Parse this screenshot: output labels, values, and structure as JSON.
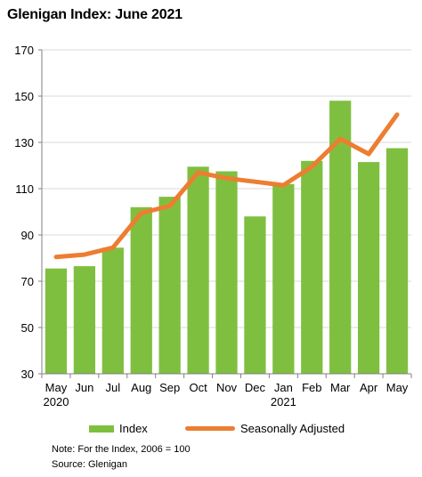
{
  "header": {
    "title": "Glenigan Index: June 2021"
  },
  "colors": {
    "bar": "#7fbf3f",
    "line": "#ed7d31",
    "axis": "#808080",
    "grid": "#d9d9d9"
  },
  "chart_data": {
    "type": "bar",
    "title": "Glenigan Index: June 2021",
    "categories": [
      "May",
      "Jun",
      "Jul",
      "Aug",
      "Sep",
      "Oct",
      "Nov",
      "Dec",
      "Jan",
      "Feb",
      "Mar",
      "Apr",
      "May"
    ],
    "year_labels": [
      "2020",
      "",
      "",
      "",
      "",
      "",
      "",
      "",
      "2021",
      "",
      "",
      "",
      ""
    ],
    "series": [
      {
        "name": "Index",
        "type": "bar",
        "values": [
          75.5,
          76.5,
          84.5,
          102,
          106.5,
          119.5,
          117.5,
          98,
          112,
          122,
          148,
          121.5,
          127.5
        ]
      },
      {
        "name": "Seasonally Adjusted",
        "type": "line",
        "values": [
          80.5,
          81.5,
          84.5,
          99.5,
          102.5,
          117,
          114.5,
          113,
          111.5,
          119.5,
          131.5,
          125,
          142
        ]
      }
    ],
    "ylim": [
      30,
      170
    ],
    "yticks": [
      30,
      50,
      70,
      90,
      110,
      130,
      150,
      170
    ],
    "grid": true,
    "legend": "bottom"
  },
  "notes": [
    "Note: For the Index, 2006 = 100",
    "Source: Glenigan"
  ]
}
